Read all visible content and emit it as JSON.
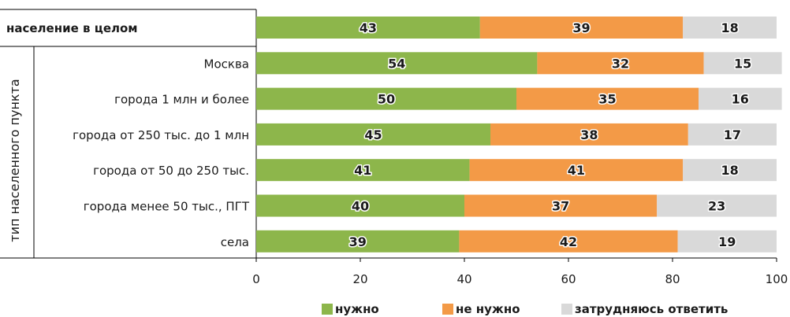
{
  "chart_data": {
    "type": "bar",
    "orientation": "horizontal",
    "stacked": true,
    "group_label": "тип населенного пункта",
    "categories": [
      "население в целом",
      "Москва",
      "города 1 млн и более",
      "города от 250 тыс. до 1 млн",
      "города от 50 до 250 тыс.",
      "города менее 50 тыс., ПГТ",
      "села"
    ],
    "series": [
      {
        "name": "нужно",
        "color": "#8db64b",
        "values": [
          43,
          54,
          50,
          45,
          41,
          40,
          39
        ]
      },
      {
        "name": "не нужно",
        "color": "#f39a47",
        "values": [
          39,
          32,
          35,
          38,
          41,
          37,
          42
        ]
      },
      {
        "name": "затрудняюсь ответить",
        "color": "#d9d9d9",
        "values": [
          18,
          15,
          16,
          17,
          18,
          23,
          19
        ]
      }
    ],
    "xlim": [
      0,
      100
    ],
    "xticks": [
      0,
      20,
      40,
      60,
      80,
      100
    ],
    "legend_position": "bottom",
    "grid": false
  }
}
